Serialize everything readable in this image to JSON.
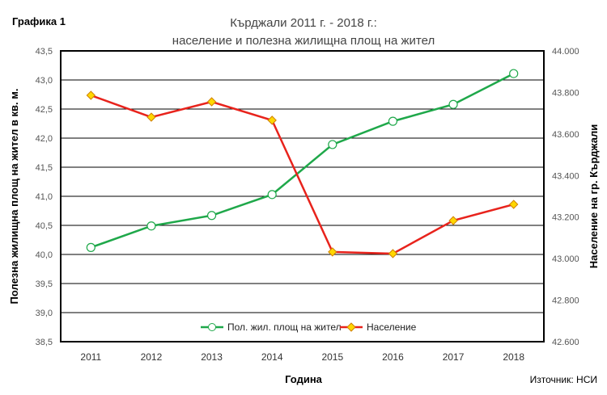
{
  "label": "Графика 1",
  "source": "Източник: НСИ",
  "chart_data": {
    "type": "line",
    "title": "Кърджали 2011 г. - 2018 г.:",
    "subtitle": "население и полезна жилищна площ на жител",
    "xlabel": "Година",
    "ylabel": "Полезна жилищна площ на жител в кв. м.",
    "y2label": "Население на гр. Кърджали",
    "categories": [
      "2011",
      "2012",
      "2013",
      "2014",
      "2015",
      "2016",
      "2017",
      "2018"
    ],
    "ylim": [
      38.5,
      43.5
    ],
    "yticks": [
      "38,5",
      "39,0",
      "39,5",
      "40,0",
      "40,5",
      "41,0",
      "41,5",
      "42,0",
      "42,5",
      "43,0",
      "43,5"
    ],
    "y2lim": [
      42600,
      44000
    ],
    "y2ticks": [
      "42.600",
      "42.800",
      "43.000",
      "43.200",
      "43.400",
      "43.600",
      "43.800",
      "44.000"
    ],
    "grid": true,
    "legend": "bottom-center",
    "series": [
      {
        "name": "Пол. жил. площ на жител",
        "axis": "left",
        "color": "#1fa84a",
        "marker": "circle",
        "values": [
          40.12,
          40.49,
          40.67,
          41.03,
          41.89,
          42.29,
          42.58,
          43.11
        ]
      },
      {
        "name": "Население",
        "axis": "right",
        "color": "#e8231c",
        "marker": "diamond",
        "marker_color": "#ffd700",
        "values": [
          43786,
          43681,
          43755,
          43666,
          43032,
          43024,
          43183,
          43261
        ]
      }
    ]
  }
}
